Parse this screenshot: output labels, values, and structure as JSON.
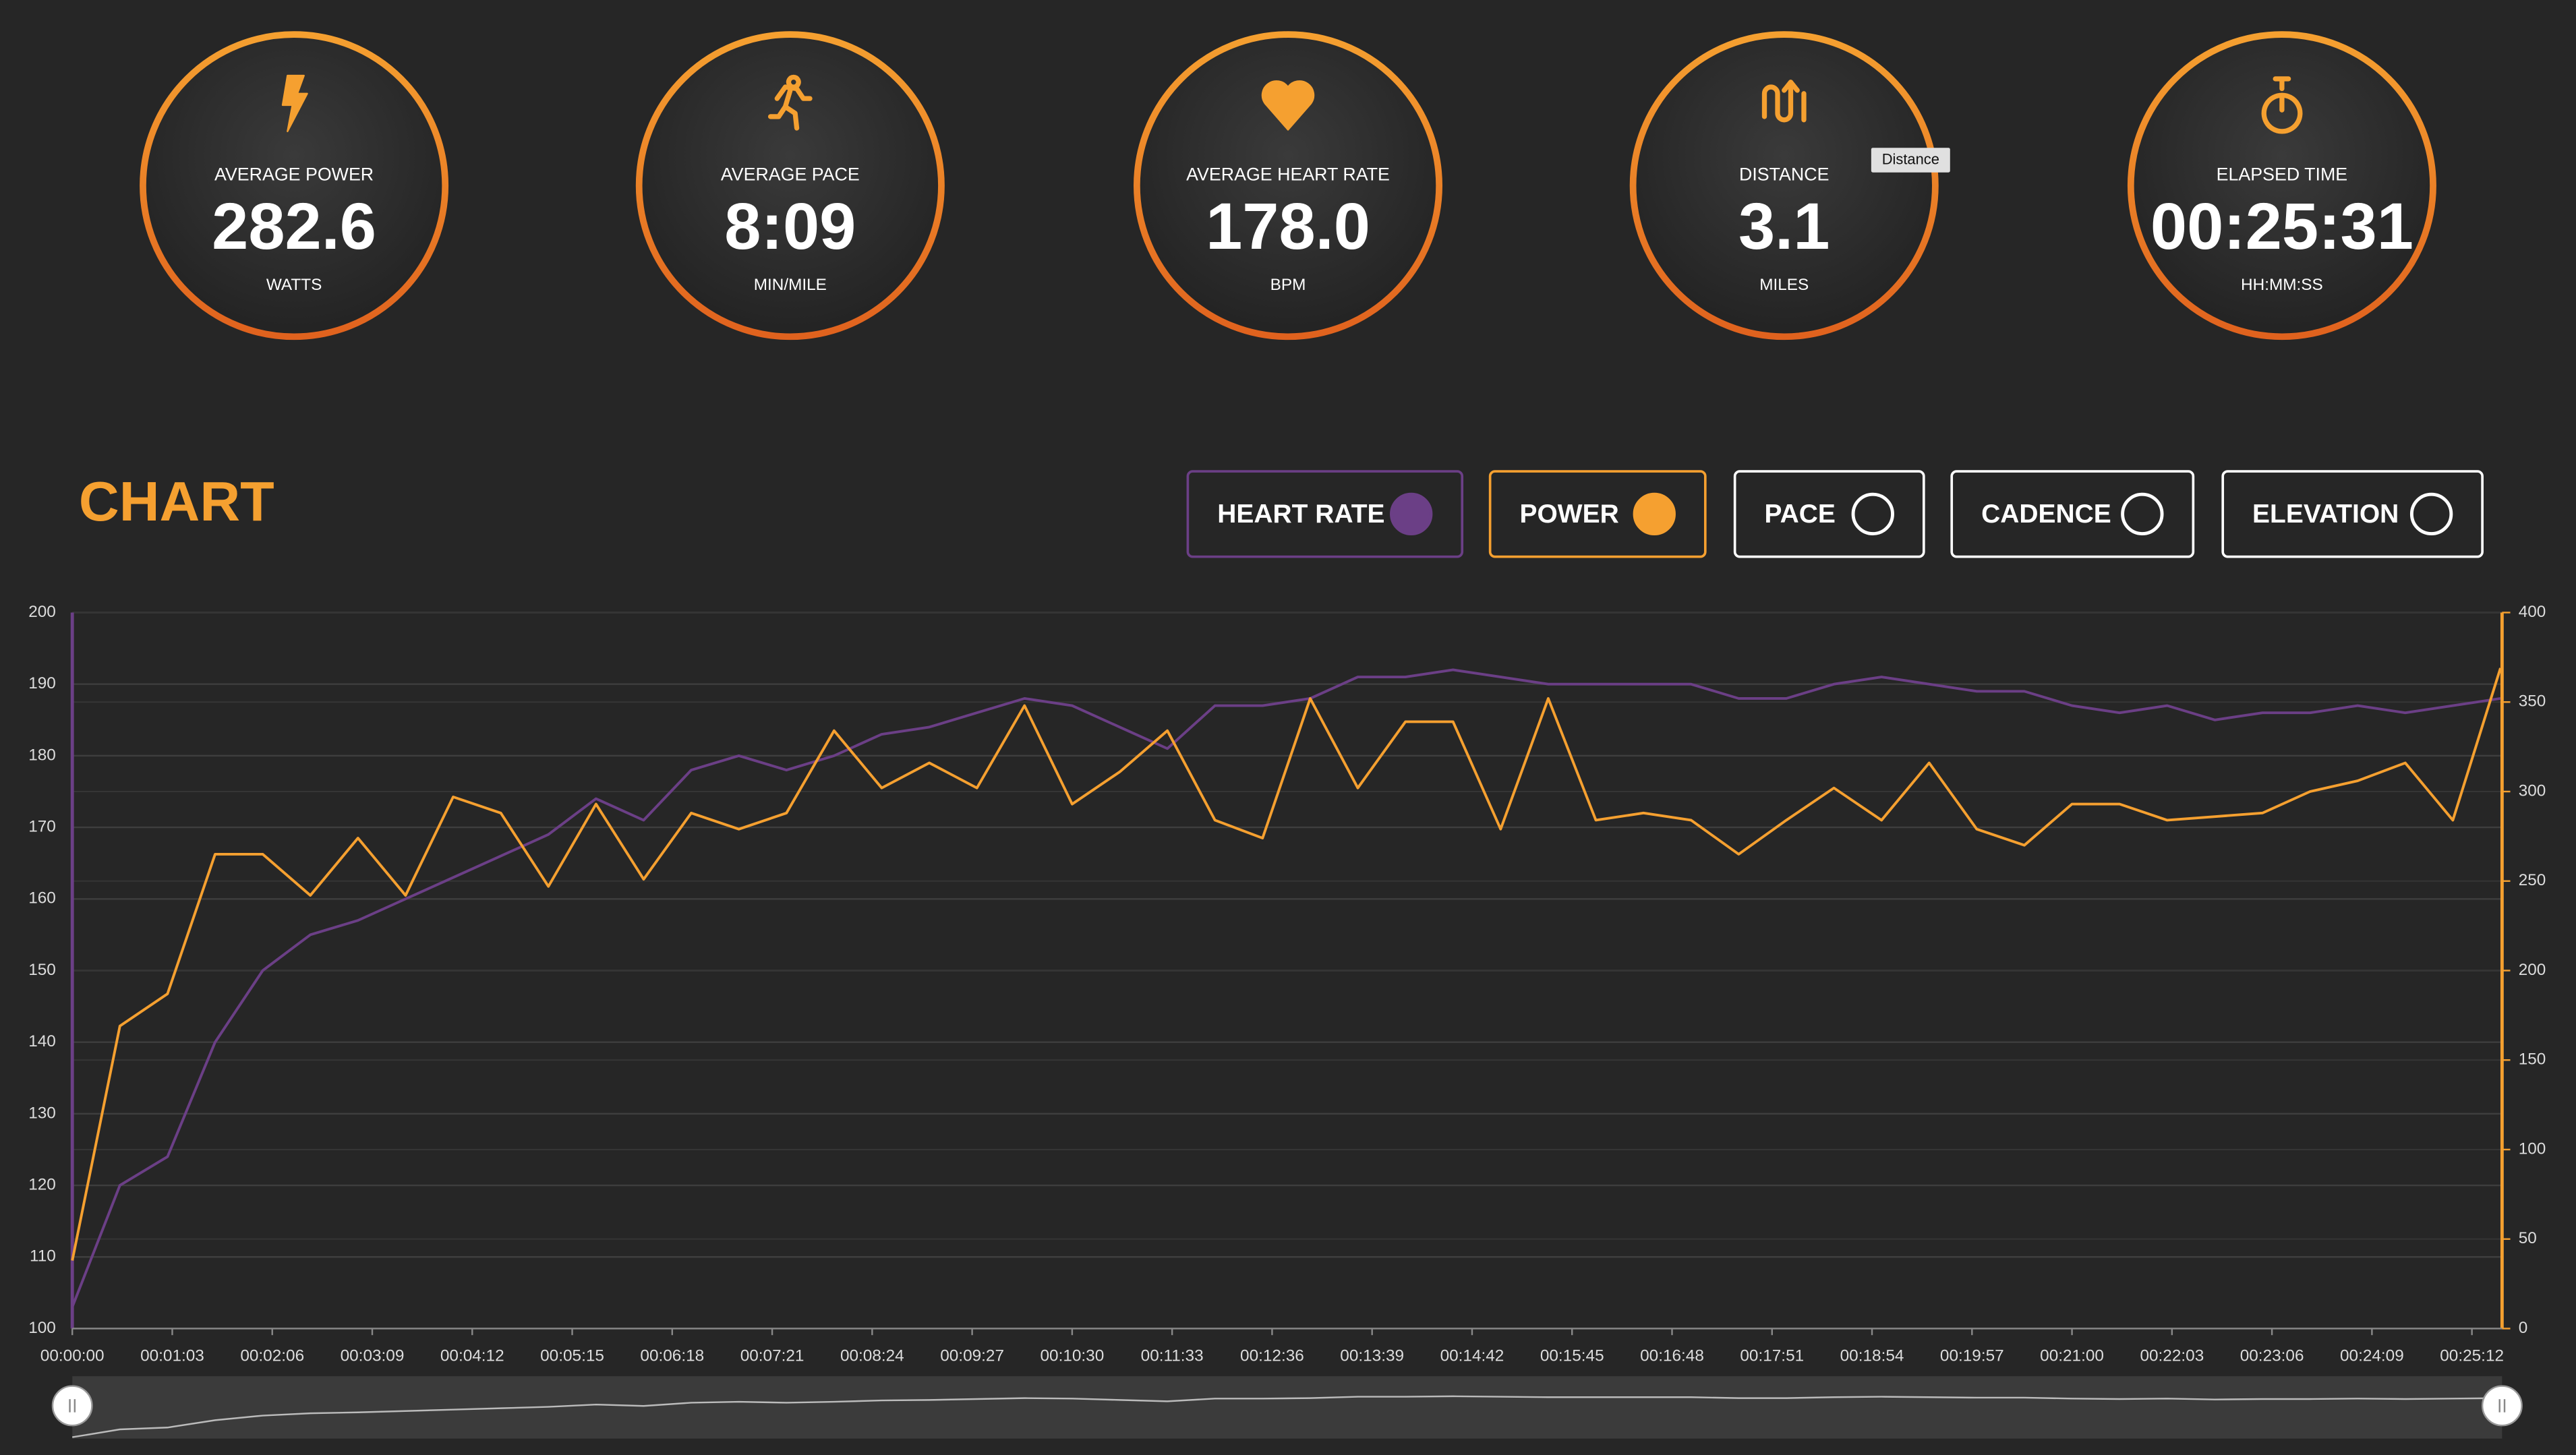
{
  "stats": [
    {
      "label": "AVERAGE POWER",
      "value": "282.6",
      "unit": "WATTS"
    },
    {
      "label": "AVERAGE PACE",
      "value": "8:09",
      "unit": "MIN/MILE"
    },
    {
      "label": "AVERAGE HEART RATE",
      "value": "178.0",
      "unit": "BPM"
    },
    {
      "label": "DISTANCE",
      "value": "3.1",
      "unit": "MILES"
    },
    {
      "label": "ELAPSED TIME",
      "value": "00:25:31",
      "unit": "HH:MM:SS"
    }
  ],
  "tooltip": "Distance",
  "chart_title": "CHART",
  "toggles": [
    "PACE",
    "CADENCE",
    "ELEVATION"
  ],
  "chart_data": {
    "type": "line",
    "x": [
      0,
      30,
      60,
      90,
      120,
      150,
      180,
      210,
      240,
      270,
      300,
      330,
      360,
      390,
      420,
      450,
      480,
      510,
      540,
      570,
      600,
      630,
      660,
      690,
      720,
      750,
      780,
      810,
      840,
      870,
      900,
      930,
      960,
      990,
      1020,
      1050,
      1080,
      1110,
      1140,
      1170,
      1200,
      1230,
      1260,
      1290,
      1320,
      1350,
      1380,
      1410,
      1440,
      1470,
      1500,
      1530
    ],
    "xlim": [
      0,
      1531
    ],
    "xticks": [
      {
        "value": 0,
        "label": "00:00:00"
      },
      {
        "value": 63,
        "label": "00:01:03"
      },
      {
        "value": 126,
        "label": "00:02:06"
      },
      {
        "value": 189,
        "label": "00:03:09"
      },
      {
        "value": 252,
        "label": "00:04:12"
      },
      {
        "value": 315,
        "label": "00:05:15"
      },
      {
        "value": 378,
        "label": "00:06:18"
      },
      {
        "value": 441,
        "label": "00:07:21"
      },
      {
        "value": 504,
        "label": "00:08:24"
      },
      {
        "value": 567,
        "label": "00:09:27"
      },
      {
        "value": 630,
        "label": "00:10:30"
      },
      {
        "value": 693,
        "label": "00:11:33"
      },
      {
        "value": 756,
        "label": "00:12:36"
      },
      {
        "value": 819,
        "label": "00:13:39"
      },
      {
        "value": 882,
        "label": "00:14:42"
      },
      {
        "value": 945,
        "label": "00:15:45"
      },
      {
        "value": 1008,
        "label": "00:16:48"
      },
      {
        "value": 1071,
        "label": "00:17:51"
      },
      {
        "value": 1134,
        "label": "00:18:54"
      },
      {
        "value": 1197,
        "label": "00:19:57"
      },
      {
        "value": 1260,
        "label": "00:21:00"
      },
      {
        "value": 1323,
        "label": "00:22:03"
      },
      {
        "value": 1386,
        "label": "00:23:06"
      },
      {
        "value": 1449,
        "label": "00:24:09"
      },
      {
        "value": 1512,
        "label": "00:25:12"
      }
    ],
    "ylim": [
      100,
      200
    ],
    "yticks": [
      100,
      110,
      120,
      130,
      140,
      150,
      160,
      170,
      180,
      190,
      200
    ],
    "y2lim": [
      0,
      400
    ],
    "y2ticks": [
      0,
      50,
      100,
      150,
      200,
      250,
      300,
      350,
      400
    ],
    "grid": true,
    "series": [
      {
        "name": "HEART RATE",
        "color": "#6b3f86",
        "values": [
          103,
          120,
          124,
          140,
          150,
          155,
          157,
          160,
          163,
          166,
          169,
          174,
          171,
          178,
          180,
          178,
          180,
          183,
          184,
          186,
          188,
          187,
          184,
          181,
          187,
          187,
          188,
          191,
          191,
          192,
          191,
          190,
          190,
          190,
          190,
          188,
          188,
          190,
          191,
          190,
          189,
          189,
          187,
          186,
          187,
          185,
          186,
          186,
          187,
          186,
          187,
          188
        ]
      },
      {
        "name": "POWER",
        "color": "#f5a030",
        "axis": "y2",
        "values": [
          38,
          169,
          187,
          265,
          265,
          242,
          274,
          242,
          297,
          288,
          247,
          293,
          251,
          288,
          279,
          288,
          334,
          302,
          316,
          302,
          348,
          293,
          311,
          334,
          284,
          274,
          352,
          302,
          339,
          339,
          279,
          352,
          284,
          288,
          284,
          265,
          284,
          302,
          284,
          316,
          279,
          270,
          293,
          293,
          284,
          286,
          288,
          300,
          306,
          316,
          284,
          369
        ]
      }
    ]
  }
}
